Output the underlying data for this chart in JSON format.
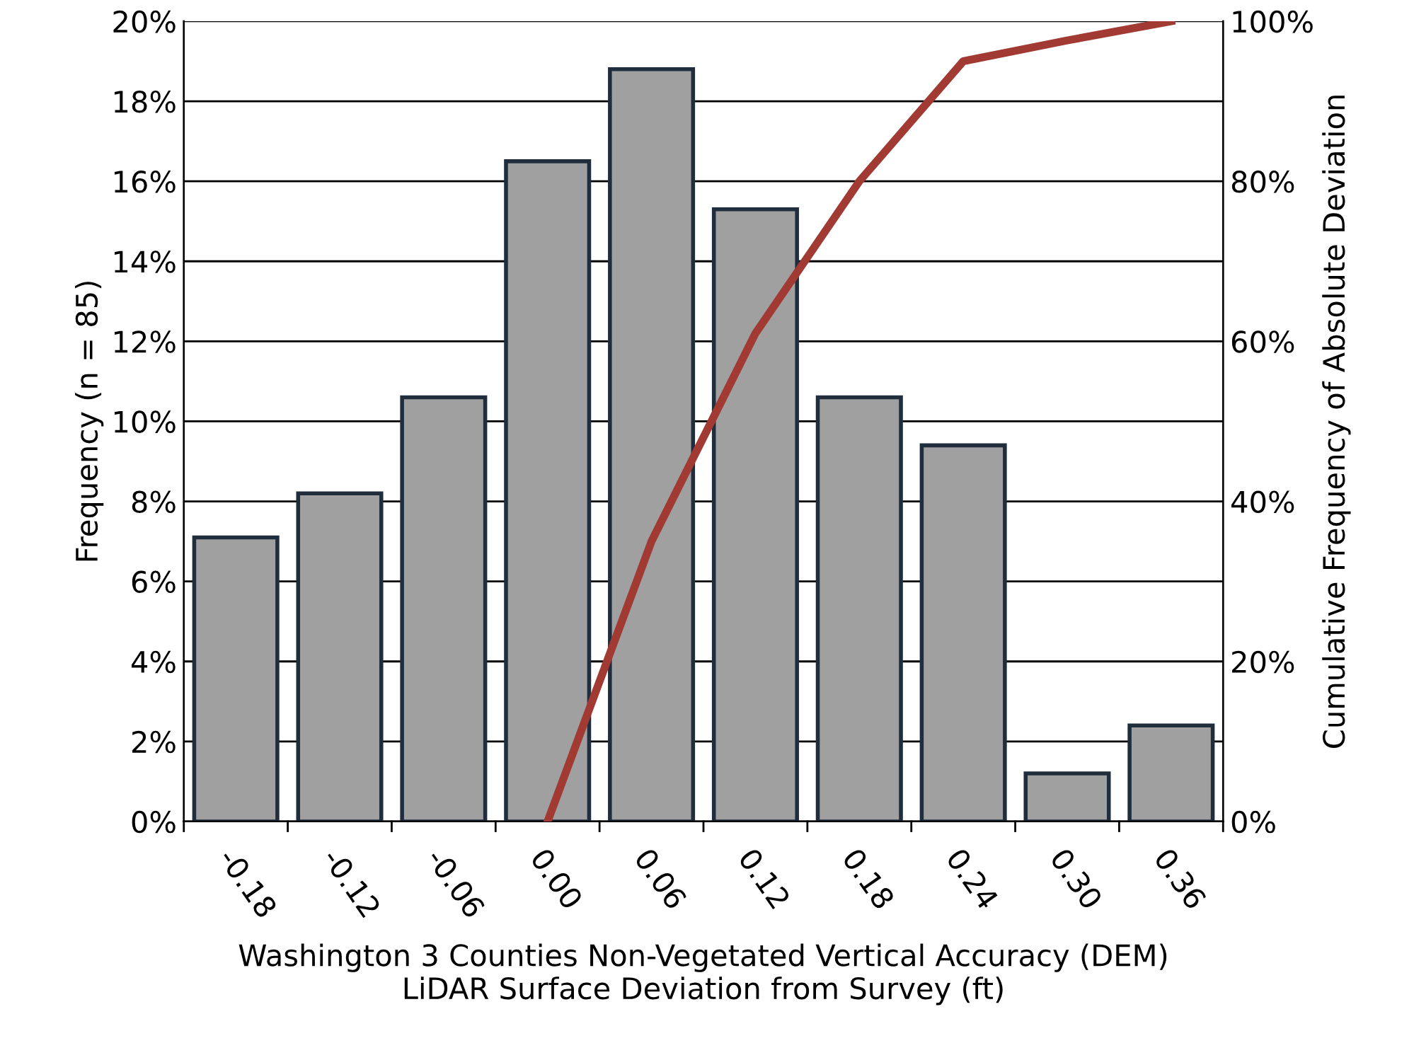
{
  "chart_data": {
    "type": "bar",
    "xlabel": "Washington 3 Counties Non-Vegetated Vertical Accuracy (DEM)\nLiDAR Surface Deviation from Survey (ft)",
    "ylabel": "Frequency (n = 85)",
    "y2label": "Cumulative Frequency of Absolute Deviation",
    "categories": [
      "-0.18",
      "-0.12",
      "-0.06",
      "0.00",
      "0.06",
      "0.12",
      "0.18",
      "0.24",
      "0.30",
      "0.36"
    ],
    "series": [
      {
        "color": "#a0a0a0",
        "values": [
          7.1,
          8.2,
          10.6,
          16.5,
          18.8,
          15.3,
          10.6,
          9.4,
          1.2,
          2.4
        ]
      },
      {
        "type": "line",
        "axis": "y2",
        "color": "#a03a33",
        "values": [
          null,
          null,
          null,
          0,
          35,
          61,
          80,
          95,
          97.6,
          100
        ]
      }
    ],
    "ylim": [
      0,
      20
    ],
    "yticks": [
      {
        "value": 0,
        "label": "0%"
      },
      {
        "value": 2,
        "label": "2%"
      },
      {
        "value": 4,
        "label": "4%"
      },
      {
        "value": 6,
        "label": "6%"
      },
      {
        "value": 8,
        "label": "8%"
      },
      {
        "value": 10,
        "label": "10%"
      },
      {
        "value": 12,
        "label": "12%"
      },
      {
        "value": 14,
        "label": "14%"
      },
      {
        "value": 16,
        "label": "16%"
      },
      {
        "value": 18,
        "label": "18%"
      },
      {
        "value": 20,
        "label": "20%"
      }
    ],
    "y2lim": [
      0,
      100
    ],
    "y2ticks": [
      {
        "value": 0,
        "label": "0%"
      },
      {
        "value": 20,
        "label": "20%"
      },
      {
        "value": 40,
        "label": "40%"
      },
      {
        "value": 60,
        "label": "60%"
      },
      {
        "value": 80,
        "label": "80%"
      },
      {
        "value": 100,
        "label": "100%"
      }
    ],
    "grid": "y",
    "legend": false
  }
}
